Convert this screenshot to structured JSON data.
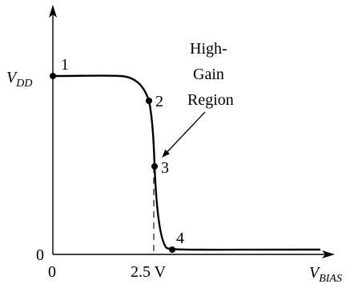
{
  "diagram": {
    "y_axis_label": {
      "main": "V",
      "sub": "DD"
    },
    "x_axis_label": {
      "main": "V",
      "sub": "BIAS"
    },
    "y_origin_label": "0",
    "x_origin_label": "0",
    "x_tick_label": "2.5 V",
    "points": [
      {
        "label": "1"
      },
      {
        "label": "2"
      },
      {
        "label": "3"
      },
      {
        "label": "4"
      }
    ],
    "annotation": {
      "lines": [
        "High-",
        "Gain",
        "Region"
      ]
    },
    "colors": {
      "stroke": "#000000",
      "background": "#ffffff"
    }
  }
}
